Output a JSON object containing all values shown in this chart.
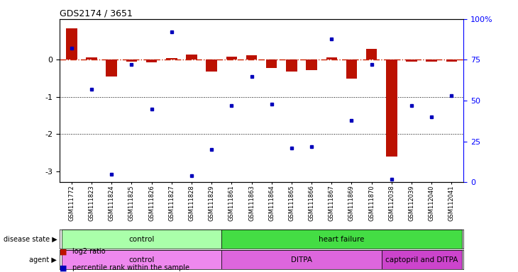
{
  "title": "GDS2174 / 3651",
  "samples": [
    "GSM111772",
    "GSM111823",
    "GSM111824",
    "GSM111825",
    "GSM111826",
    "GSM111827",
    "GSM111828",
    "GSM111829",
    "GSM111861",
    "GSM111863",
    "GSM111864",
    "GSM111865",
    "GSM111866",
    "GSM111867",
    "GSM111869",
    "GSM111870",
    "GSM112038",
    "GSM112039",
    "GSM112040",
    "GSM112041"
  ],
  "log2_ratio": [
    0.85,
    0.07,
    -0.45,
    -0.05,
    -0.07,
    0.05,
    0.14,
    -0.32,
    0.09,
    0.12,
    -0.22,
    -0.32,
    -0.28,
    0.07,
    -0.5,
    0.3,
    -2.6,
    -0.05,
    -0.05,
    -0.04
  ],
  "percentile_rank": [
    82,
    57,
    5,
    72,
    45,
    92,
    4,
    20,
    47,
    65,
    48,
    21,
    22,
    88,
    38,
    72,
    2,
    47,
    40,
    53
  ],
  "disease_state_groups": [
    {
      "label": "control",
      "start": 0,
      "end": 8,
      "color": "#aaffaa"
    },
    {
      "label": "heart failure",
      "start": 8,
      "end": 20,
      "color": "#44dd44"
    }
  ],
  "agent_groups": [
    {
      "label": "control",
      "start": 0,
      "end": 8,
      "color": "#ee88ee"
    },
    {
      "label": "DITPA",
      "start": 8,
      "end": 16,
      "color": "#dd66dd"
    },
    {
      "label": "captopril and DITPA",
      "start": 16,
      "end": 20,
      "color": "#cc44cc"
    }
  ],
  "red_color": "#bb1100",
  "blue_color": "#0000bb",
  "ylim_left": [
    -3.3,
    1.1
  ],
  "yticks_left": [
    0,
    -1,
    -2,
    -3
  ],
  "yticks_right": [
    0,
    25,
    50,
    75,
    100
  ],
  "zero_line_color": "#cc2200",
  "dotted_line_color": "#000000"
}
